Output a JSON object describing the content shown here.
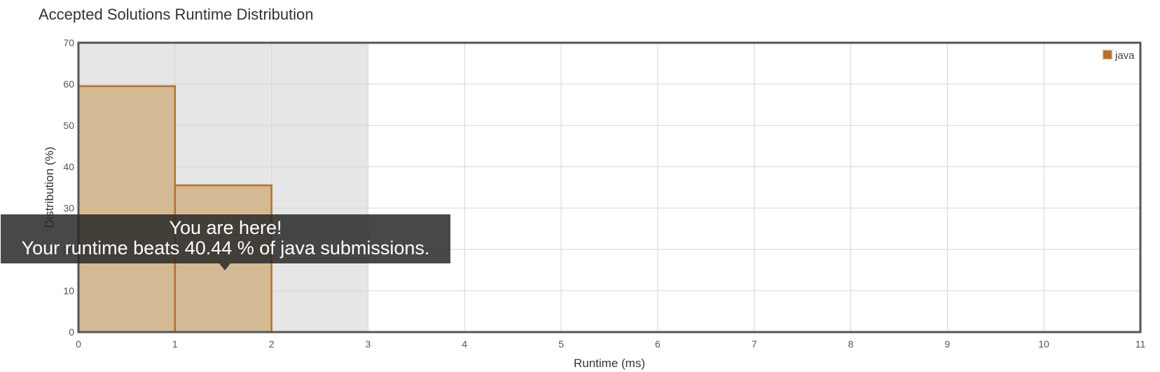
{
  "chart_data": {
    "type": "bar",
    "title": "Accepted Solutions Runtime Distribution",
    "xlabel": "Runtime (ms)",
    "ylabel": "Distribution (%)",
    "xlim": [
      0,
      11
    ],
    "ylim": [
      0,
      70
    ],
    "x_ticks": [
      "0",
      "1",
      "2",
      "3",
      "4",
      "5",
      "6",
      "7",
      "8",
      "9",
      "10",
      "11"
    ],
    "y_ticks": [
      "0",
      "10",
      "20",
      "30",
      "40",
      "50",
      "60",
      "70"
    ],
    "grid": true,
    "legend_position": "top-right",
    "series": [
      {
        "name": "java",
        "color": "#b8702a",
        "fill": "#d4b995",
        "bins": [
          {
            "x0": 0,
            "x1": 1,
            "value": 59.5
          },
          {
            "x0": 1,
            "x1": 2,
            "value": 35.5
          }
        ]
      }
    ],
    "highlight_range": [
      0,
      3
    ],
    "highlight_color": "#e6e6e6",
    "tooltip": {
      "line1": "You are here!",
      "line2": "Your runtime beats 40.44 % of java submissions."
    }
  }
}
